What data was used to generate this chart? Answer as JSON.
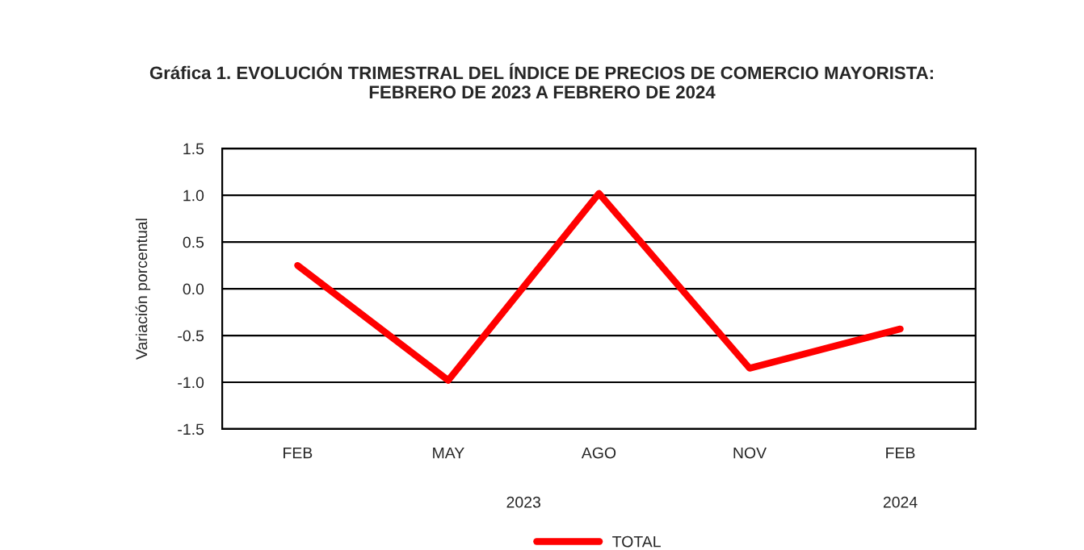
{
  "chart_data": {
    "type": "line",
    "title": "Gráfica 1. EVOLUCIÓN TRIMESTRAL DEL ÍNDICE DE PRECIOS DE COMERCIO MAYORISTA:\nFEBRERO DE 2023 A FEBRERO DE 2024",
    "ylabel": "Variación porcentual",
    "categories": [
      "FEB",
      "MAY",
      "AGO",
      "NOV",
      "FEB"
    ],
    "series": [
      {
        "name": "TOTAL",
        "color": "#ff0000",
        "values": [
          0.25,
          -0.98,
          1.02,
          -0.85,
          -0.43
        ]
      }
    ],
    "ylim": [
      -1.5,
      1.5
    ],
    "yticks": [
      {
        "value": -1.5,
        "label": "-1.5"
      },
      {
        "value": -1.0,
        "label": "-1.0"
      },
      {
        "value": -0.5,
        "label": "-0.5"
      },
      {
        "value": 0.0,
        "label": "0.0"
      },
      {
        "value": 0.5,
        "label": "0.5"
      },
      {
        "value": 1.0,
        "label": "1.0"
      },
      {
        "value": 1.5,
        "label": "1.5"
      }
    ],
    "grid": "y",
    "legend": "bottom",
    "marker": "none",
    "line_style": "solid",
    "annotations": [
      "2023",
      "2024"
    ]
  }
}
